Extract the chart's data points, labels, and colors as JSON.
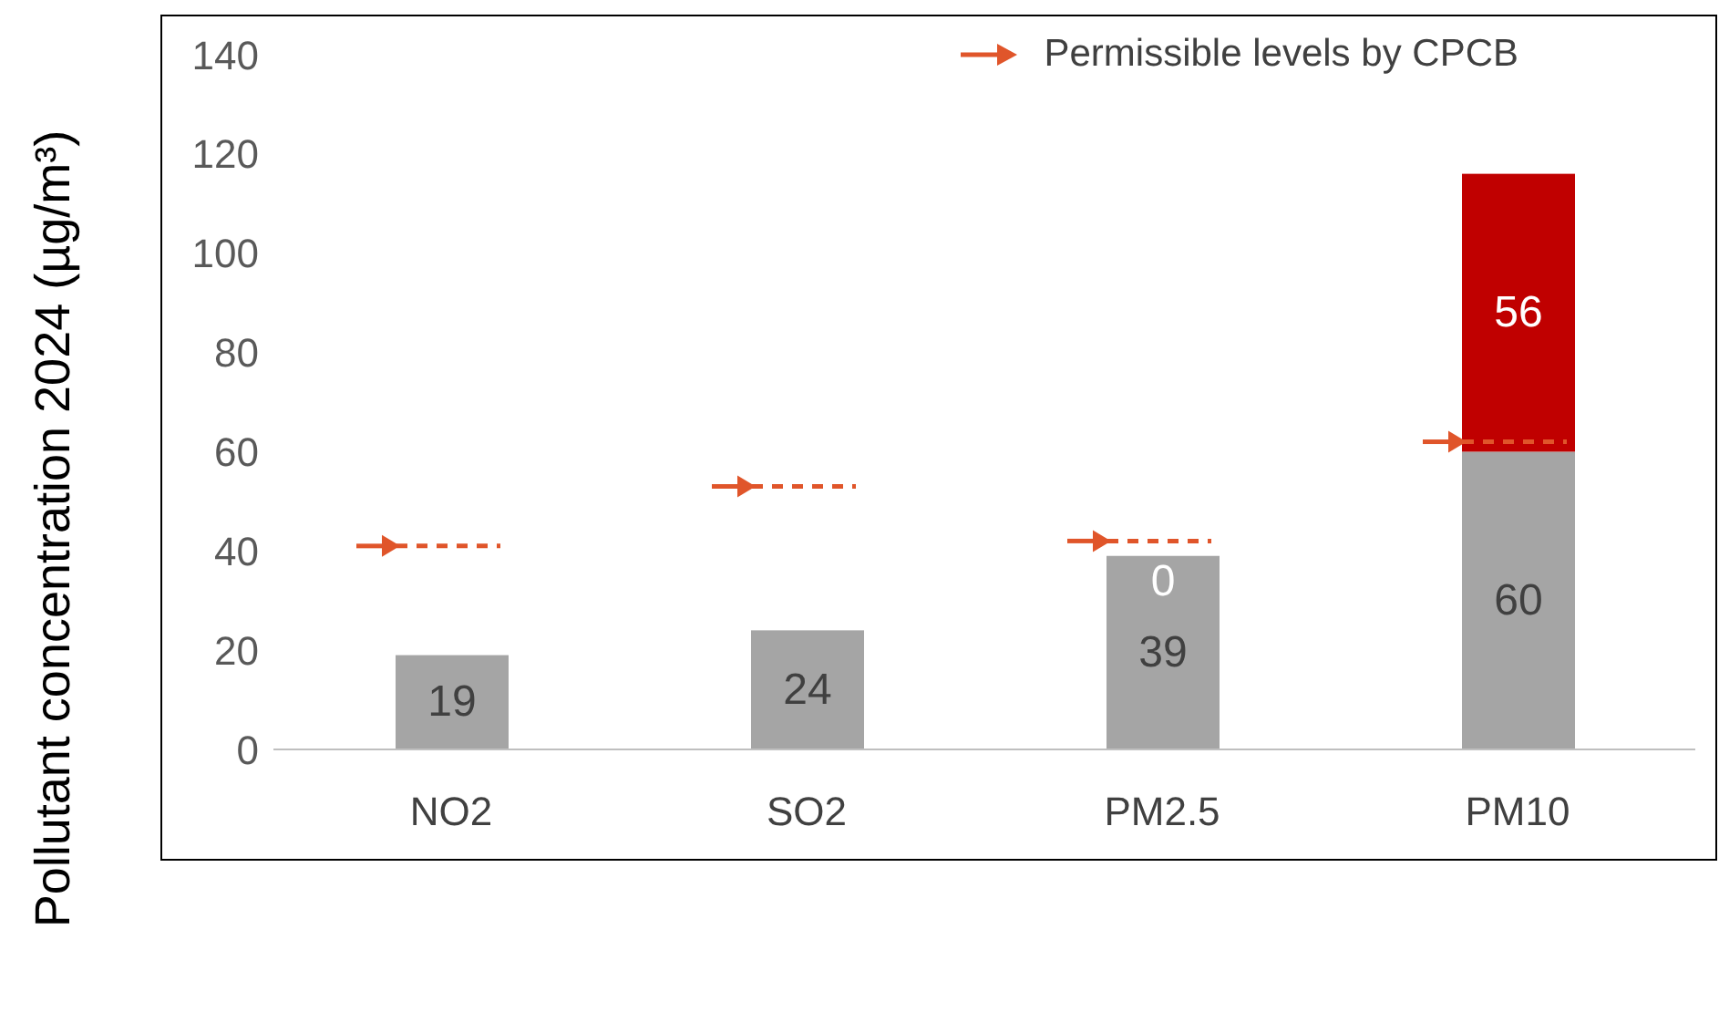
{
  "chart_data": {
    "type": "bar",
    "ylabel": "Pollutant concentration 2024 (µg/m³)",
    "categories": [
      "NO2",
      "SO2",
      "PM2.5",
      "PM10"
    ],
    "stacked": true,
    "legend": "top right",
    "ylim": [
      0,
      140
    ],
    "yticks": [
      0,
      20,
      40,
      60,
      80,
      100,
      120,
      140
    ],
    "series": [
      {
        "color": "#a5a5a5",
        "values": [
          19,
          24,
          39,
          60
        ],
        "value_labels": [
          "19",
          "24",
          "39",
          "60"
        ]
      },
      {
        "color": "#c00000",
        "values": [
          null,
          null,
          0,
          56
        ],
        "value_labels": [
          null,
          null,
          "0",
          "56"
        ]
      },
      {
        "type": "scatter",
        "name": "Permissible levels by CPCB",
        "color": "#e0552a",
        "marker": "triangle",
        "line_style": "dashed",
        "values": [
          41,
          53,
          42,
          62
        ]
      }
    ]
  }
}
